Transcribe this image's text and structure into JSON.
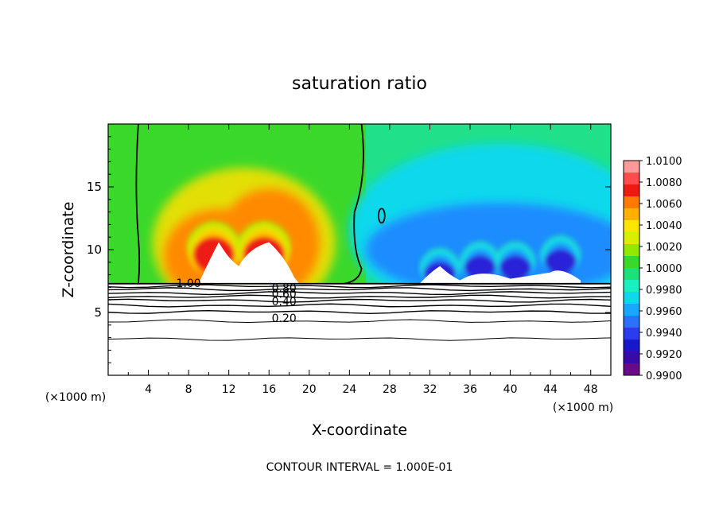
{
  "chart_data": {
    "type": "heatmap",
    "title": "saturation ratio",
    "xlabel": "X-coordinate",
    "ylabel": "Z-coordinate",
    "x_unit": "(×1000 m)",
    "x_ticks": [
      4,
      8,
      12,
      16,
      20,
      24,
      28,
      32,
      36,
      40,
      44,
      48
    ],
    "y_ticks": [
      5,
      10,
      15
    ],
    "xlim": [
      0,
      50
    ],
    "ylim": [
      0,
      20
    ],
    "footer": "CONTOUR INTERVAL = 1.000E-01",
    "colorbar": {
      "labels": [
        "1.0100",
        "1.0080",
        "1.0060",
        "1.0040",
        "1.0020",
        "1.0000",
        "0.9980",
        "0.9960",
        "0.9940",
        "0.9920",
        "0.9900"
      ],
      "range": [
        0.99,
        1.01
      ],
      "colors": [
        "#ff9a9a",
        "#ff4c4c",
        "#ee1a12",
        "#ff7a00",
        "#ffb000",
        "#ffe600",
        "#d8f000",
        "#92e800",
        "#3ad82a",
        "#1ee078",
        "#18f0c0",
        "#10d8ec",
        "#18a8ff",
        "#2a72f8",
        "#2a3cec",
        "#1818c8",
        "#3a0aa8",
        "#6a0a88"
      ]
    },
    "contour_labels": [
      "1.00",
      "0.80",
      "0.60",
      "0.40",
      "0.20"
    ],
    "contour_levels": [
      1.0,
      0.9,
      0.8,
      0.7,
      0.6,
      0.5,
      0.4,
      0.3,
      0.2,
      0.1
    ],
    "cloud_base_z": 7.3,
    "peaks": [
      {
        "x": 10.5,
        "z": 11.0,
        "value": 1.01
      },
      {
        "x": 15.5,
        "z": 11.0,
        "value": 1.01
      },
      {
        "x": 33.0,
        "z": 9.5,
        "value": 0.9915
      },
      {
        "x": 37.0,
        "z": 10.0,
        "value": 0.9915
      },
      {
        "x": 40.5,
        "z": 10.0,
        "value": 0.9915
      },
      {
        "x": 45.0,
        "z": 10.5,
        "value": 0.9915
      }
    ]
  }
}
